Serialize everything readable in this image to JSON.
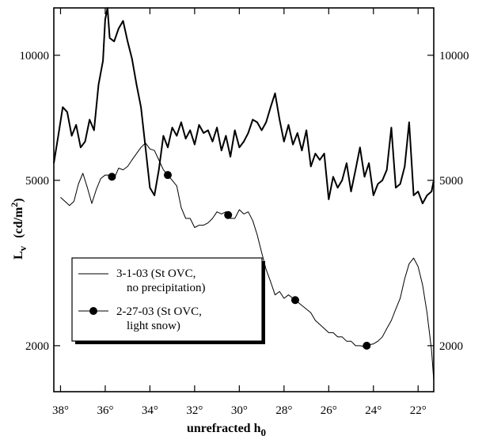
{
  "chart_data": {
    "type": "line",
    "xlabel": "unrefracted h",
    "xlabel_subscript": "0",
    "ylabel": "L",
    "ylabel_subscript": "v",
    "ylabel_units": "(cd/m",
    "ylabel_units_sup": "2",
    "ylabel_units_close": ")",
    "y_scale": "log",
    "x_reversed": true,
    "xlim": [
      38.3,
      21.3
    ],
    "ylim": [
      1550,
      13000
    ],
    "x_ticks": [
      {
        "value": 38,
        "label": "38°"
      },
      {
        "value": 36,
        "label": "36°"
      },
      {
        "value": 34,
        "label": "34°"
      },
      {
        "value": 32,
        "label": "32°"
      },
      {
        "value": 30,
        "label": "30°"
      },
      {
        "value": 28,
        "label": "28°"
      },
      {
        "value": 26,
        "label": "26°"
      },
      {
        "value": 24,
        "label": "24°"
      },
      {
        "value": 22,
        "label": "22°"
      }
    ],
    "y_ticks_left": [
      {
        "value": 10000,
        "label": "10000"
      },
      {
        "value": 5000,
        "label": "5000"
      },
      {
        "value": 2000,
        "label": "2000"
      }
    ],
    "y_ticks_right": [
      {
        "value": 10000,
        "label": "10000"
      },
      {
        "value": 5000,
        "label": "5000"
      },
      {
        "value": 2000,
        "label": "2000"
      }
    ],
    "legend_position": "left-middle",
    "series": [
      {
        "name": "3-1-03 (St OVC, no precipitation)",
        "legend_lines": [
          "3-1-03 (St OVC,",
          "no precipitation)"
        ],
        "style": "thick",
        "x": [
          38.3,
          38.1,
          37.9,
          37.7,
          37.5,
          37.3,
          37.1,
          36.9,
          36.7,
          36.5,
          36.3,
          36.1,
          36.0,
          35.9,
          35.8,
          35.6,
          35.4,
          35.2,
          35.0,
          34.8,
          34.6,
          34.4,
          34.2,
          34.0,
          33.8,
          33.6,
          33.4,
          33.2,
          33.0,
          32.8,
          32.6,
          32.4,
          32.2,
          32.0,
          31.8,
          31.6,
          31.4,
          31.2,
          31.0,
          30.8,
          30.6,
          30.4,
          30.2,
          30.0,
          29.8,
          29.6,
          29.4,
          29.2,
          29.0,
          28.8,
          28.6,
          28.4,
          28.2,
          28.0,
          27.8,
          27.6,
          27.4,
          27.2,
          27.0,
          26.8,
          26.6,
          26.4,
          26.2,
          26.0,
          25.8,
          25.6,
          25.4,
          25.2,
          25.0,
          24.8,
          24.6,
          24.4,
          24.2,
          24.0,
          23.8,
          23.6,
          23.4,
          23.2,
          23.0,
          22.8,
          22.6,
          22.4,
          22.2,
          22.0,
          21.8,
          21.6,
          21.4,
          21.3
        ],
        "y": [
          5500,
          6400,
          7500,
          7300,
          6400,
          6800,
          6000,
          6200,
          7000,
          6600,
          8500,
          9700,
          12200,
          13000,
          11000,
          10800,
          11600,
          12100,
          10800,
          9800,
          8500,
          7500,
          6000,
          4800,
          4600,
          5300,
          6400,
          6000,
          6700,
          6400,
          6900,
          6300,
          6600,
          6100,
          6800,
          6500,
          6600,
          6200,
          6700,
          5900,
          6400,
          5700,
          6600,
          6000,
          6200,
          6500,
          7000,
          6900,
          6600,
          6900,
          7500,
          8100,
          7000,
          6200,
          6800,
          6100,
          6500,
          5900,
          6600,
          5400,
          5800,
          5600,
          5800,
          4500,
          5100,
          4800,
          5000,
          5500,
          4700,
          5300,
          6000,
          5100,
          5500,
          4600,
          4900,
          5000,
          5300,
          6700,
          4800,
          4900,
          5400,
          6900,
          4600,
          4700,
          4400,
          4600,
          4700,
          5000
        ]
      },
      {
        "name": "2-27-03 (St OVC, light snow)",
        "legend_lines": [
          "2-27-03 (St OVC,",
          "light snow)"
        ],
        "style": "thin-with-markers",
        "x": [
          38.0,
          37.8,
          37.6,
          37.4,
          37.2,
          37.0,
          36.8,
          36.6,
          36.4,
          36.2,
          36.0,
          35.8,
          35.6,
          35.4,
          35.2,
          35.0,
          34.8,
          34.6,
          34.4,
          34.2,
          34.0,
          33.8,
          33.6,
          33.4,
          33.2,
          33.0,
          32.8,
          32.6,
          32.4,
          32.2,
          32.0,
          31.8,
          31.6,
          31.4,
          31.2,
          31.0,
          30.8,
          30.6,
          30.4,
          30.2,
          30.0,
          29.8,
          29.6,
          29.4,
          29.2,
          29.0,
          28.8,
          28.6,
          28.4,
          28.2,
          28.0,
          27.8,
          27.6,
          27.4,
          27.2,
          27.0,
          26.8,
          26.6,
          26.4,
          26.2,
          26.0,
          25.8,
          25.6,
          25.4,
          25.2,
          25.0,
          24.8,
          24.6,
          24.4,
          24.2,
          24.0,
          23.8,
          23.6,
          23.4,
          23.2,
          23.0,
          22.8,
          22.6,
          22.4,
          22.2,
          22.0,
          21.8,
          21.6,
          21.4,
          21.3
        ],
        "y": [
          4550,
          4450,
          4350,
          4450,
          4900,
          5200,
          4800,
          4400,
          4750,
          5050,
          5150,
          5150,
          5050,
          5350,
          5300,
          5400,
          5600,
          5800,
          6000,
          6150,
          5950,
          5900,
          5600,
          5300,
          5150,
          5000,
          4850,
          4300,
          4050,
          4050,
          3850,
          3900,
          3900,
          3950,
          4050,
          4200,
          4150,
          4200,
          4050,
          4050,
          4250,
          4150,
          4200,
          4000,
          3700,
          3350,
          3050,
          2850,
          2650,
          2700,
          2600,
          2650,
          2600,
          2550,
          2500,
          2450,
          2400,
          2300,
          2250,
          2200,
          2150,
          2150,
          2100,
          2100,
          2050,
          2050,
          2000,
          2000,
          1990,
          2010,
          2020,
          2050,
          2100,
          2200,
          2300,
          2450,
          2600,
          2900,
          3150,
          3250,
          3100,
          2800,
          2400,
          1950,
          1650
        ],
        "marker_x": [
          35.7,
          33.2,
          30.5,
          27.5,
          24.3
        ]
      }
    ]
  }
}
